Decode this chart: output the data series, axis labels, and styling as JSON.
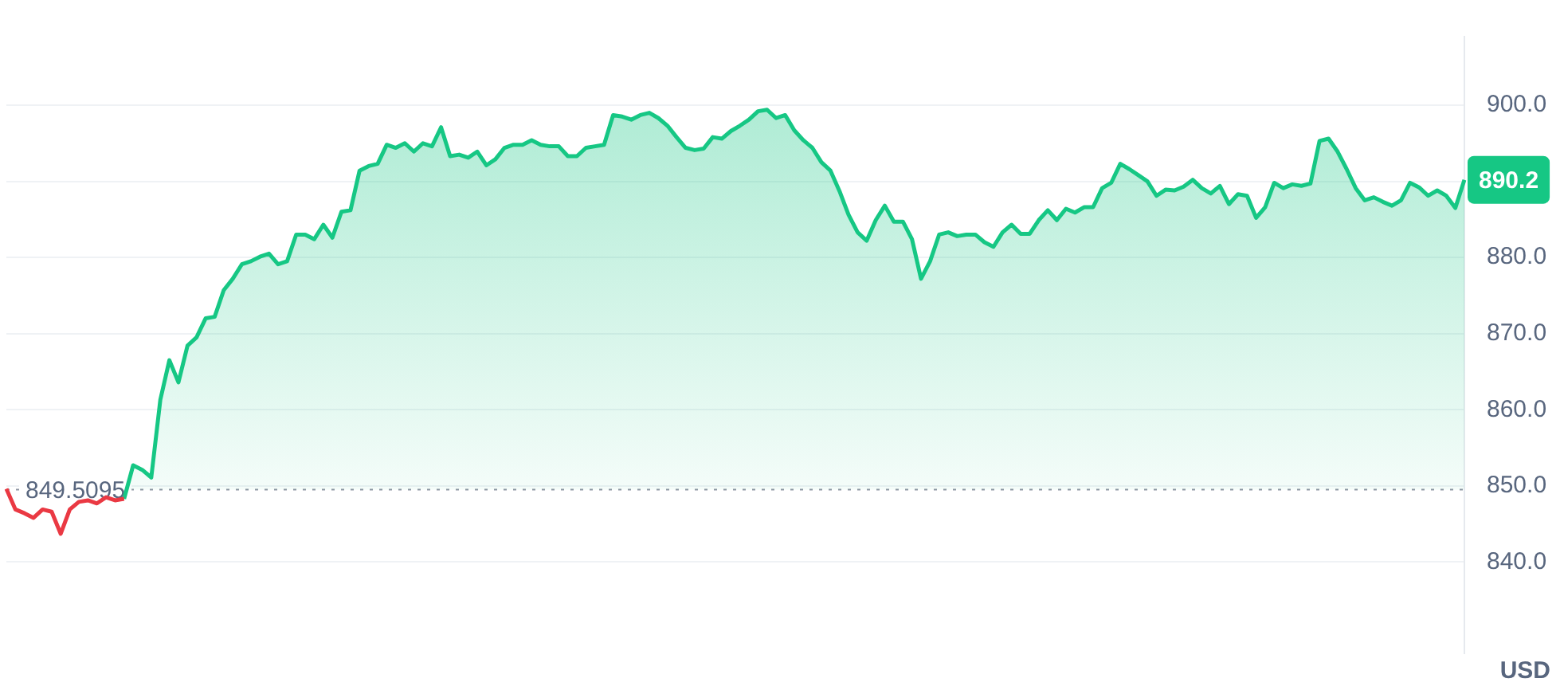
{
  "chart_data": {
    "type": "area",
    "ylabel": "USD",
    "categories": [
      null,
      null,
      null,
      null,
      null,
      null,
      null,
      null,
      null,
      null,
      null,
      null,
      null,
      null,
      null,
      null,
      null,
      null,
      null,
      null,
      null,
      null,
      null,
      null,
      null,
      null,
      null,
      null,
      null,
      null,
      null,
      null,
      null,
      null,
      null,
      null,
      null,
      null,
      null,
      null,
      null,
      null,
      null,
      null,
      null,
      null,
      null,
      null,
      null,
      null,
      null,
      null,
      null,
      null,
      null,
      null,
      null,
      null,
      null,
      null,
      null,
      null,
      null,
      null,
      null,
      null,
      null,
      null,
      null,
      null,
      null,
      null,
      null,
      null,
      null,
      null,
      null,
      null,
      null,
      null,
      null,
      null,
      null,
      null,
      null,
      null,
      null,
      null,
      null,
      null,
      null,
      null,
      null,
      null,
      null,
      null,
      null,
      null,
      null,
      null,
      null,
      null,
      null,
      null,
      null,
      null,
      null,
      null,
      null,
      null,
      null,
      null,
      null,
      null,
      null,
      null,
      null,
      null,
      null,
      null,
      null,
      null,
      null,
      null,
      null,
      null,
      null,
      null,
      null,
      null,
      null,
      null,
      null,
      null,
      null,
      null,
      null,
      null,
      null,
      null,
      null,
      null,
      null,
      null,
      null,
      null,
      null,
      null,
      null,
      null,
      null,
      null,
      null,
      null,
      null,
      null,
      null,
      null,
      null,
      null,
      null,
      null
    ],
    "series": [
      {
        "type": "line",
        "color": "#ea3943",
        "values": [
          849.6,
          846.9,
          846.4,
          845.8,
          846.9,
          846.6,
          843.7,
          846.9,
          847.9,
          848.1,
          847.7,
          848.5,
          848.1,
          848.3,
          null,
          null,
          null,
          null,
          null,
          null,
          null,
          null,
          null,
          null,
          null,
          null,
          null,
          null,
          null,
          null,
          null,
          null,
          null,
          null,
          null,
          null,
          null,
          null,
          null,
          null,
          null,
          null,
          null,
          null,
          null,
          null,
          null,
          null,
          null,
          null,
          null,
          null,
          null,
          null,
          null,
          null,
          null,
          null,
          null,
          null,
          null,
          null,
          null,
          null,
          null,
          null,
          null,
          null,
          null,
          null,
          null,
          null,
          null,
          null,
          null,
          null,
          null,
          null,
          null,
          null,
          null,
          null,
          null,
          null,
          null,
          null,
          null,
          null,
          null,
          null,
          null,
          null,
          null,
          null,
          null,
          null,
          null,
          null,
          null,
          null,
          null,
          null,
          null,
          null,
          null,
          null,
          null,
          null,
          null,
          null,
          null,
          null,
          null,
          null,
          null,
          null,
          null,
          null,
          null,
          null,
          null,
          null,
          null,
          null,
          null,
          null,
          null,
          null,
          null,
          null,
          null,
          null,
          null,
          null,
          null,
          null,
          null,
          null,
          null,
          null,
          null,
          null,
          null,
          null,
          null,
          null,
          null,
          null,
          null,
          null,
          null,
          null,
          null,
          null,
          null,
          null,
          null,
          null,
          null,
          null,
          null,
          null
        ]
      },
      {
        "color": "#16c784",
        "values": [
          null,
          null,
          null,
          null,
          null,
          null,
          null,
          null,
          null,
          null,
          null,
          null,
          null,
          848.3,
          852.7,
          852.1,
          851.1,
          861.3,
          866.5,
          863.6,
          868.4,
          869.5,
          872.0,
          872.2,
          875.7,
          877.2,
          879.1,
          879.5,
          880.1,
          880.5,
          879.1,
          879.5,
          883.0,
          883.0,
          882.4,
          884.3,
          882.6,
          886.0,
          886.2,
          891.4,
          892.0,
          892.3,
          894.8,
          894.4,
          895.0,
          893.9,
          895.0,
          894.6,
          897.1,
          893.3,
          893.5,
          893.1,
          893.9,
          892.1,
          892.9,
          894.4,
          894.8,
          894.8,
          895.4,
          894.8,
          894.6,
          894.6,
          893.3,
          893.3,
          894.4,
          894.6,
          894.8,
          898.7,
          898.5,
          898.1,
          898.7,
          899.0,
          898.3,
          897.3,
          895.8,
          894.4,
          894.1,
          894.3,
          895.8,
          895.6,
          896.6,
          897.3,
          898.1,
          899.2,
          899.4,
          898.3,
          898.7,
          896.7,
          895.4,
          894.4,
          892.5,
          891.4,
          888.7,
          885.6,
          883.3,
          882.2,
          884.9,
          886.8,
          884.7,
          884.7,
          882.4,
          877.2,
          879.5,
          883.0,
          883.3,
          882.8,
          883.0,
          883.0,
          882.0,
          881.4,
          883.3,
          884.3,
          883.1,
          883.1,
          884.9,
          886.2,
          884.9,
          886.4,
          885.9,
          886.6,
          886.6,
          889.1,
          889.8,
          892.3,
          891.6,
          890.8,
          890.0,
          888.1,
          888.9,
          888.8,
          889.3,
          890.2,
          889.1,
          888.4,
          889.4,
          887.0,
          888.3,
          888.1,
          885.2,
          886.6,
          889.8,
          889.1,
          889.6,
          889.4,
          889.7,
          895.3,
          895.6,
          893.9,
          891.6,
          889.1,
          887.5,
          887.9,
          887.3,
          886.8,
          887.5,
          889.8,
          889.2,
          888.1,
          888.8,
          888.1,
          886.5,
          890.2
        ]
      }
    ],
    "ylim": [
      828,
      909
    ],
    "yticks": [
      {
        "value": 840,
        "label": "840.0"
      },
      {
        "value": 850,
        "label": "850.0"
      },
      {
        "value": 860,
        "label": "860.0"
      },
      {
        "value": 870,
        "label": "870.0"
      },
      {
        "value": 880,
        "label": "880.0"
      },
      {
        "value": 890,
        "label": null
      },
      {
        "value": 900,
        "label": "900.0"
      }
    ],
    "tick_labels": "y",
    "grid": "y",
    "ref_lines": [
      {
        "axis": "y",
        "value": 849.5095,
        "label": "849.5095",
        "line_style": "dotted",
        "color": "#8f96a3"
      }
    ],
    "annotations": [
      "890.2"
    ],
    "legend": false
  }
}
